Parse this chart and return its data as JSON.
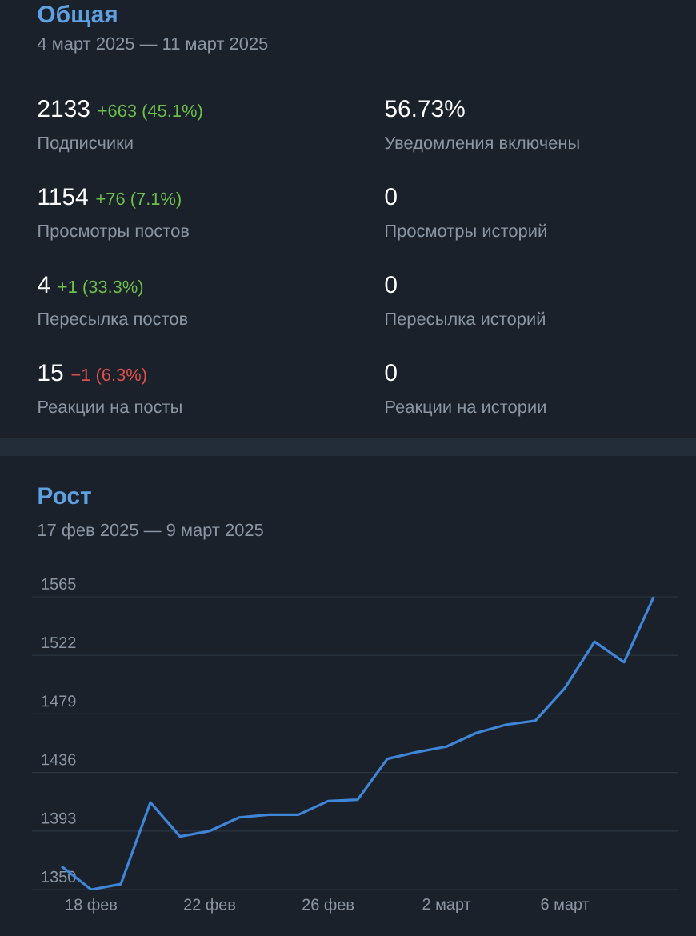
{
  "chart_data": [
    {
      "type": "other",
      "title": "Общая",
      "subtitle": "4 март 2025 — 11 март 2025",
      "categories": [
        "Подписчики",
        "Уведомления включены",
        "Просмотры постов",
        "Просмотры историй",
        "Пересылка постов",
        "Пересылка историй",
        "Реакции на посты",
        "Реакции на истории"
      ],
      "value_labels": [
        "2133",
        "56.73%",
        "1154",
        "0",
        "4",
        "0",
        "15",
        "0"
      ],
      "annotations": [
        "+663 (45.1%)",
        "+76 (7.1%)",
        "+1 (33.3%)",
        "−1 (6.3%)"
      ],
      "colors": [
        "#6cc04a",
        "#6cc04a",
        "#6cc04a",
        "#e0504a"
      ]
    },
    {
      "type": "line",
      "title": "Рост",
      "subtitle": "17 фев 2025 — 9 март 2025",
      "x": [
        "2025-02-17",
        "2025-02-18",
        "2025-02-19",
        "2025-02-20",
        "2025-02-21",
        "2025-02-22",
        "2025-02-23",
        "2025-02-24",
        "2025-02-25",
        "2025-02-26",
        "2025-02-27",
        "2025-02-28",
        "2025-03-01",
        "2025-03-02",
        "2025-03-03",
        "2025-03-04",
        "2025-03-05",
        "2025-03-06",
        "2025-03-07",
        "2025-03-08",
        "2025-03-09"
      ],
      "series": [
        {
          "color": "#3f86d8",
          "values": [
            1367,
            1350,
            1354,
            1414,
            1389,
            1393,
            1403,
            1405,
            1405,
            1415,
            1416,
            1446,
            1451,
            1455,
            1465,
            1471,
            1474,
            1498,
            1532,
            1517,
            1565
          ]
        }
      ],
      "xlim": [
        "2025-02-16",
        "2025-03-09T20:00"
      ],
      "xticks": [
        {
          "value": "2025-02-18",
          "label": "18 фев"
        },
        {
          "value": "2025-02-22",
          "label": "22 фев"
        },
        {
          "value": "2025-02-26",
          "label": "26 фев"
        },
        {
          "value": "2025-03-02",
          "label": "2 март"
        },
        {
          "value": "2025-03-06",
          "label": "6 март"
        }
      ],
      "ylim": [
        1350,
        1565
      ],
      "yticks": [
        1350,
        1393,
        1436,
        1479,
        1522,
        1565
      ],
      "grid": "y"
    }
  ]
}
